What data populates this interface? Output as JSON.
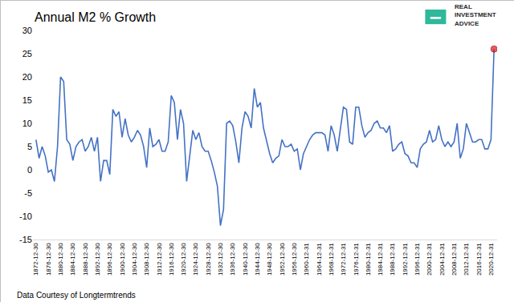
{
  "chart_data": {
    "type": "line",
    "title": "Annual M2 % Growth",
    "logo": [
      "REAL",
      "INVESTMENT",
      "ADVICE"
    ],
    "source": "Data Courtesy of Longtermtrends",
    "categories": [
      "1872-12-30",
      null,
      null,
      null,
      "1876-12-30",
      null,
      null,
      null,
      "1880-12-30",
      null,
      null,
      null,
      "1884-12-30",
      null,
      null,
      null,
      "1888-12-30",
      null,
      null,
      null,
      "1892-12-30",
      null,
      null,
      null,
      "1896-12-30",
      null,
      null,
      null,
      "1900-12-30",
      null,
      null,
      null,
      "1904-12-30",
      null,
      null,
      null,
      "1908-12-30",
      null,
      null,
      null,
      "1912-12-30",
      null,
      null,
      null,
      "1916-12-30",
      null,
      null,
      null,
      "1920-12-30",
      null,
      null,
      null,
      "1924-12-30",
      null,
      null,
      null,
      "1928-12-30",
      null,
      null,
      null,
      "1932-12-30",
      null,
      null,
      null,
      "1936-12-30",
      null,
      null,
      null,
      "1940-12-30",
      null,
      null,
      null,
      "1944-12-30",
      null,
      null,
      null,
      "1948-12-30",
      null,
      null,
      null,
      "1952-12-30",
      null,
      null,
      null,
      "1956-12-30",
      null,
      null,
      null,
      "1960-12-31",
      null,
      null,
      null,
      "1964-12-31",
      null,
      null,
      null,
      "1968-12-31",
      null,
      null,
      null,
      "1972-12-31",
      null,
      null,
      null,
      "1976-12-31",
      null,
      null,
      null,
      "1980-12-31",
      null,
      null,
      null,
      "1984-12-31",
      null,
      null,
      null,
      "1988-12-31",
      null,
      null,
      null,
      "1992-12-31",
      null,
      null,
      null,
      "1996-12-31",
      null,
      null,
      null,
      "2000-12-31",
      null,
      null,
      null,
      "2004-12-31",
      null,
      null,
      null,
      "2008-12-31",
      null,
      null,
      null,
      "2012-12-31",
      null,
      null,
      null,
      "2016-12-31",
      null,
      null,
      null,
      "2020-12-31",
      null
    ],
    "values": [
      6.5,
      2.5,
      5,
      3,
      -0.5,
      0,
      -2.5,
      5,
      20,
      19,
      6.5,
      5.5,
      2,
      5,
      6,
      6.5,
      4,
      5,
      7,
      4,
      7,
      -2.5,
      2,
      2,
      -1,
      13,
      11.5,
      12.5,
      7,
      11,
      7.5,
      6,
      7,
      8.5,
      7.5,
      5,
      0.5,
      9,
      5,
      5.5,
      6.5,
      4,
      4,
      6,
      16,
      14.5,
      6.5,
      13,
      10,
      -2.5,
      3,
      8.5,
      6.5,
      8,
      5,
      4,
      4,
      2,
      -0.5,
      -3.5,
      -12,
      -8.5,
      10,
      10.5,
      9.5,
      6,
      1.5,
      9,
      12.5,
      11.5,
      9,
      17.5,
      13.5,
      14.5,
      9,
      6,
      3.5,
      1.5,
      2.5,
      3,
      6.5,
      5,
      5,
      5.5,
      4,
      4.5,
      0,
      3.5,
      5,
      6.5,
      7.5,
      8,
      8,
      8,
      7.5,
      4,
      9.5,
      7.5,
      4,
      9,
      13.5,
      13,
      6,
      5.5,
      13.5,
      13.5,
      9.5,
      7,
      8,
      8.5,
      10,
      10.5,
      9,
      9,
      8,
      9.5,
      4,
      4.5,
      5.5,
      6,
      3.5,
      3,
      1.5,
      1.5,
      0.5,
      4.5,
      5.5,
      6,
      8.5,
      6,
      6.5,
      9.5,
      6.5,
      5,
      6,
      5,
      6,
      10,
      2.5,
      4.5,
      10,
      8,
      6,
      6,
      6.5,
      6.5,
      4.5,
      4.5,
      6.5,
      26
    ],
    "color": "#4472c4",
    "ylim": [
      -15,
      30
    ],
    "yticks": [
      -15,
      -10,
      -5,
      0,
      5,
      10,
      15,
      20,
      25,
      30
    ],
    "grid": false
  }
}
